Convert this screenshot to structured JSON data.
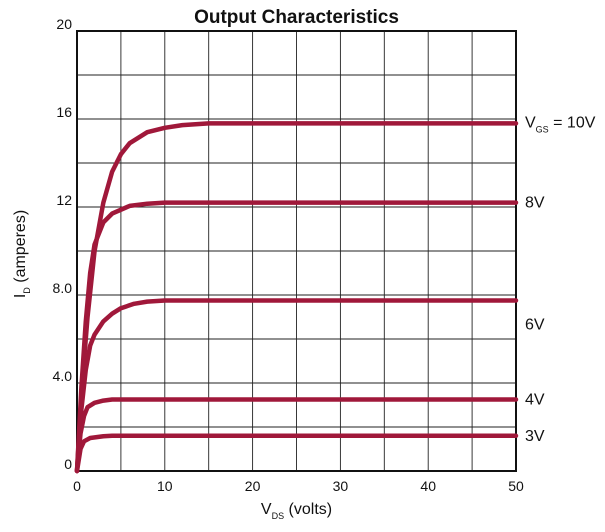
{
  "chart_data": {
    "type": "line",
    "title": "Output Characteristics",
    "xlabel": {
      "main": "V",
      "sub": "DS",
      "suffix": " (volts)"
    },
    "ylabel": {
      "main": "I",
      "sub": "D",
      "suffix": " (amperes)"
    },
    "xlim": [
      0,
      50
    ],
    "ylim": [
      0,
      20
    ],
    "x_ticks": [
      0,
      10,
      20,
      30,
      40,
      50
    ],
    "x_tick_labels": [
      "0",
      "10",
      "20",
      "30",
      "40",
      "50"
    ],
    "y_ticks": [
      0,
      4,
      8,
      12,
      16,
      20
    ],
    "y_tick_labels": [
      "0",
      "4.0",
      "8.0",
      "12",
      "16",
      "20"
    ],
    "grid": true,
    "grid_minor_x_step": 5,
    "grid_minor_y_step": 2,
    "line_color": "#A0183A",
    "series": [
      {
        "label": {
          "main": "V",
          "sub": "GS",
          "suffix": " = 10V"
        },
        "points": [
          [
            0,
            0
          ],
          [
            0.6,
            4.0
          ],
          [
            1.2,
            7.0
          ],
          [
            2.0,
            10.0
          ],
          [
            3.0,
            12.2
          ],
          [
            4.0,
            13.6
          ],
          [
            5.0,
            14.4
          ],
          [
            6.0,
            14.9
          ],
          [
            8.0,
            15.4
          ],
          [
            10.0,
            15.6
          ],
          [
            12.0,
            15.72
          ],
          [
            15.0,
            15.8
          ],
          [
            50.0,
            15.8
          ]
        ]
      },
      {
        "label": {
          "main": "8V",
          "sub": "",
          "suffix": ""
        },
        "points": [
          [
            0,
            0
          ],
          [
            0.5,
            3.8
          ],
          [
            1.0,
            6.8
          ],
          [
            1.5,
            9.0
          ],
          [
            2.0,
            10.3
          ],
          [
            3.0,
            11.3
          ],
          [
            4.0,
            11.7
          ],
          [
            6.0,
            12.05
          ],
          [
            8.0,
            12.15
          ],
          [
            10.0,
            12.2
          ],
          [
            50.0,
            12.2
          ]
        ]
      },
      {
        "label": {
          "main": "6V",
          "sub": "",
          "suffix": ""
        },
        "points": [
          [
            0,
            0
          ],
          [
            0.5,
            2.8
          ],
          [
            1.0,
            4.6
          ],
          [
            1.5,
            5.7
          ],
          [
            2.0,
            6.2
          ],
          [
            3.0,
            6.8
          ],
          [
            4.0,
            7.15
          ],
          [
            5.0,
            7.4
          ],
          [
            6.5,
            7.6
          ],
          [
            8.0,
            7.7
          ],
          [
            10.0,
            7.75
          ],
          [
            50.0,
            7.75
          ]
        ]
      },
      {
        "label": {
          "main": "4V",
          "sub": "",
          "suffix": ""
        },
        "points": [
          [
            0,
            0
          ],
          [
            0.4,
            1.7
          ],
          [
            0.8,
            2.5
          ],
          [
            1.2,
            2.9
          ],
          [
            2.0,
            3.1
          ],
          [
            3.0,
            3.2
          ],
          [
            4.0,
            3.25
          ],
          [
            50.0,
            3.25
          ]
        ]
      },
      {
        "label": {
          "main": "3V",
          "sub": "",
          "suffix": ""
        },
        "points": [
          [
            0,
            0
          ],
          [
            0.4,
            1.0
          ],
          [
            0.8,
            1.35
          ],
          [
            1.5,
            1.5
          ],
          [
            3.0,
            1.58
          ],
          [
            4.0,
            1.6
          ],
          [
            50.0,
            1.6
          ]
        ]
      }
    ]
  }
}
